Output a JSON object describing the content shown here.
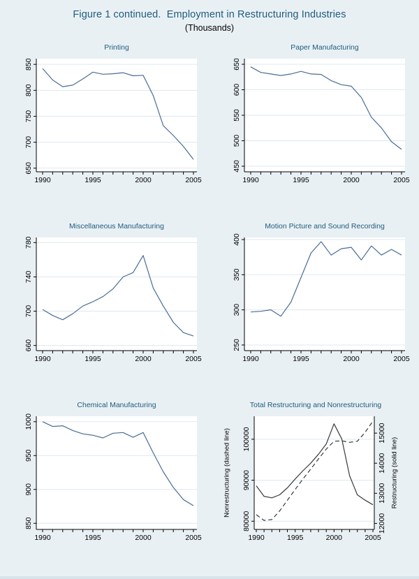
{
  "figure": {
    "title": "Figure 1 continued.  Employment in Restructuring Industries",
    "subtitle": "(Thousands)"
  },
  "colors": {
    "background": "#e9f0f4",
    "plot_background": "#ffffff",
    "grid": "#dde9f1",
    "axis": "#000000",
    "series_blue": "#4a6d94",
    "series_dark": "#3a3a3a",
    "title_text": "#1f5c7e",
    "axis_label_text": "#444444"
  },
  "years": [
    1990,
    1991,
    1992,
    1993,
    1994,
    1995,
    1996,
    1997,
    1998,
    1999,
    2000,
    2001,
    2002,
    2003,
    2004,
    2005
  ],
  "x_labeled": [
    1990,
    1995,
    2000,
    2005
  ],
  "chart_data": [
    {
      "type": "line",
      "title": "Printing",
      "left_axis": {
        "ticks": [
          650,
          700,
          750,
          800,
          850
        ],
        "range": [
          643,
          861
        ]
      },
      "series": [
        {
          "name": "Printing employment",
          "axis": "left",
          "style": "solid",
          "color": "#4a6d94",
          "values": [
            842,
            820,
            807,
            810,
            822,
            835,
            831,
            832,
            834,
            828,
            829,
            790,
            732,
            713,
            692,
            667
          ]
        }
      ]
    },
    {
      "type": "line",
      "title": "Paper Manufacturing",
      "left_axis": {
        "ticks": [
          450,
          500,
          550,
          600,
          650
        ],
        "range": [
          439,
          661
        ]
      },
      "series": [
        {
          "name": "Paper manufacturing employment",
          "axis": "left",
          "style": "solid",
          "color": "#4a6d94",
          "values": [
            645,
            634,
            631,
            628,
            631,
            636,
            631,
            630,
            618,
            610,
            607,
            585,
            546,
            525,
            498,
            483
          ]
        }
      ]
    },
    {
      "type": "line",
      "title": "Miscellaneous Manufacturing",
      "left_axis": {
        "ticks": [
          660,
          700,
          740,
          780
        ],
        "range": [
          654,
          786
        ]
      },
      "series": [
        {
          "name": "Miscellaneous manufacturing employment",
          "axis": "left",
          "style": "solid",
          "color": "#4a6d94",
          "values": [
            702,
            695,
            690,
            697,
            706,
            711,
            717,
            726,
            740,
            745,
            765,
            727,
            706,
            687,
            675,
            671
          ]
        }
      ]
    },
    {
      "type": "line",
      "title": "Motion Picture and Sound Recording",
      "left_axis": {
        "ticks": [
          250,
          300,
          350,
          400
        ],
        "range": [
          242,
          403
        ]
      },
      "series": [
        {
          "name": "Motion picture and sound recording employment",
          "axis": "left",
          "style": "solid",
          "color": "#4a6d94",
          "values": [
            297,
            298,
            300,
            291,
            311,
            346,
            381,
            397,
            378,
            387,
            389,
            371,
            391,
            378,
            386,
            378
          ]
        }
      ]
    },
    {
      "type": "line",
      "title": "Chemical Manufacturing",
      "left_axis": {
        "ticks": [
          850,
          900,
          950,
          1000
        ],
        "range": [
          841,
          1008
        ]
      },
      "series": [
        {
          "name": "Chemical manufacturing employment",
          "axis": "left",
          "style": "solid",
          "color": "#4a6d94",
          "values": [
            1000,
            993,
            994,
            987,
            982,
            980,
            976,
            983,
            984,
            977,
            984,
            954,
            926,
            903,
            885,
            876
          ]
        }
      ]
    },
    {
      "type": "line",
      "title": "Total Restructuring and Nonrestructuring",
      "left_label": "Nonrestructuring (dashed line)",
      "right_label": "Restructuring (solid line)",
      "left_axis": {
        "ticks": [
          80000,
          90000,
          100000
        ],
        "range": [
          78000,
          105600
        ]
      },
      "right_axis": {
        "ticks": [
          12000,
          13000,
          14000,
          15000
        ],
        "range": [
          11800,
          15560
        ]
      },
      "series": [
        {
          "name": "Nonrestructuring",
          "axis": "left",
          "style": "dashed",
          "color": "#3a3a3a",
          "values": [
            81600,
            80200,
            80400,
            82500,
            85100,
            87750,
            90300,
            92700,
            95200,
            97600,
            99500,
            99600,
            99250,
            99500,
            101700,
            104400
          ]
        },
        {
          "name": "Restructuring",
          "axis": "right",
          "style": "solid",
          "color": "#3a3a3a",
          "values": [
            13250,
            12900,
            12850,
            12950,
            13180,
            13475,
            13750,
            14000,
            14300,
            14640,
            15310,
            14800,
            13585,
            12950,
            12770,
            12620
          ]
        }
      ]
    }
  ]
}
